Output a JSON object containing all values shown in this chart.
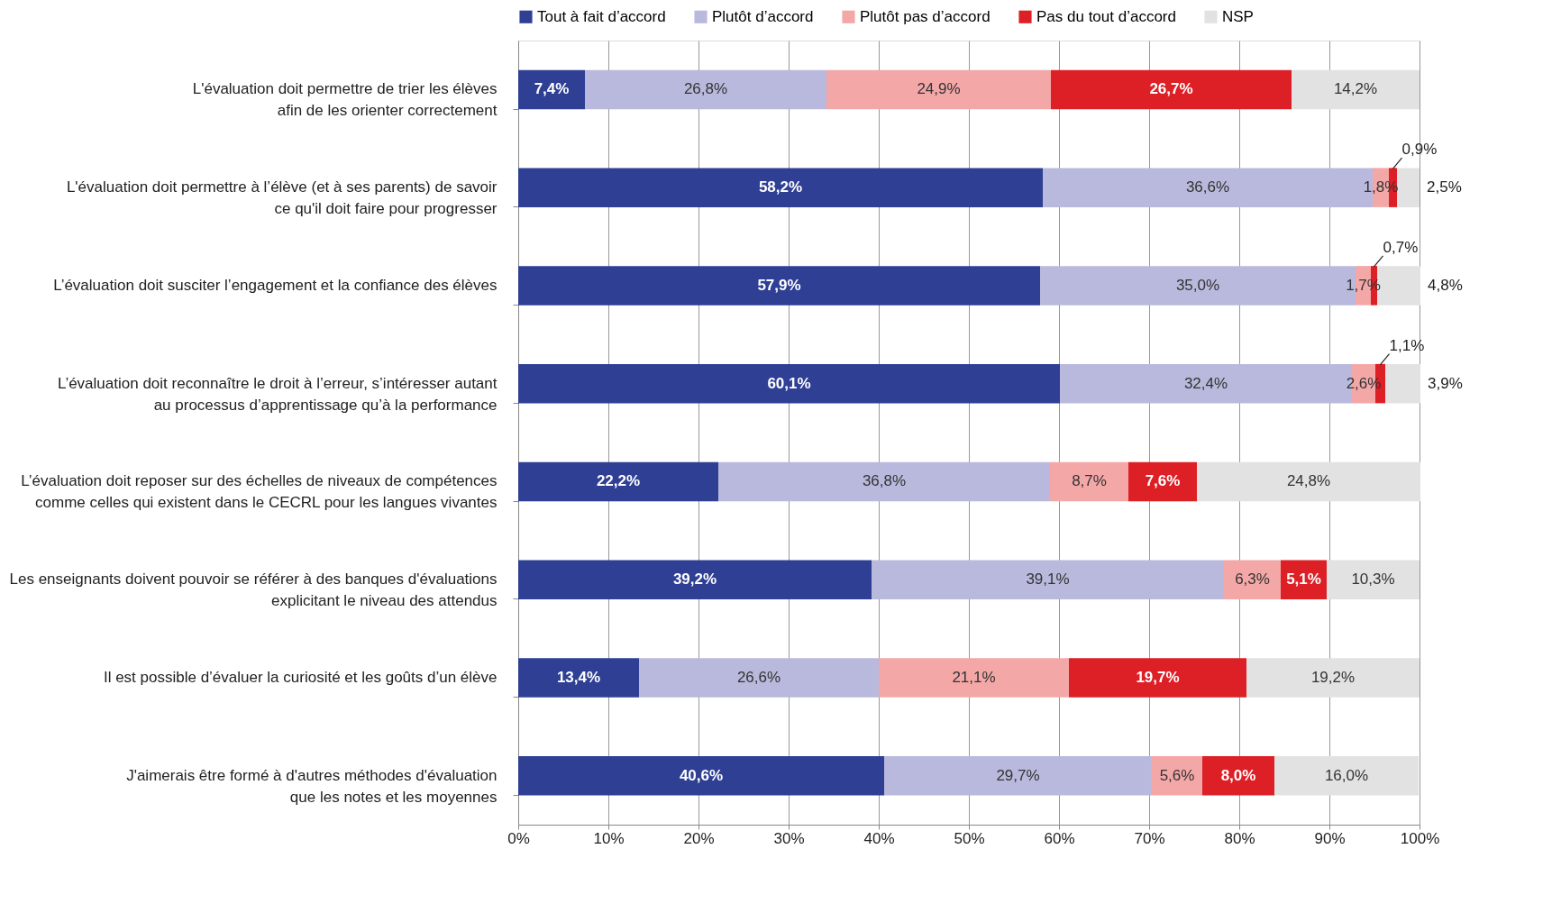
{
  "chart_data": {
    "type": "bar",
    "orientation": "horizontal",
    "stacked": true,
    "legend": "top",
    "grid": "x",
    "categories": [
      "L'évaluation doit permettre de trier les élèves\nafin de les orienter correctement",
      "L'évaluation doit permettre à l’élève (et à ses parents) de savoir\nce qu'il doit faire pour progresser",
      "L’évaluation doit susciter l’engagement et la confiance des élèves",
      "L’évaluation doit reconnaître le droit à l’erreur, s’intéresser autant\nau processus d’apprentissage qu’à la performance",
      "L’évaluation doit reposer sur des échelles de niveaux de compétences\ncomme celles qui existent dans le CECRL pour les langues vivantes",
      "Les enseignants doivent pouvoir se référer à des banques d'évaluations\nexplicitant le niveau des attendus",
      "Il est possible d’évaluer la curiosité et les goûts d’un élève",
      "J'aimerais être formé à d'autres méthodes d'évaluation\nque les notes et les moyennes"
    ],
    "series": [
      {
        "name": "Tout à fait d’accord",
        "color": "#2e3f94",
        "values": [
          7.4,
          58.2,
          57.9,
          60.1,
          22.2,
          39.2,
          13.4,
          40.6
        ],
        "value_labels": [
          "7,4%",
          "58,2%",
          "57,9%",
          "60,1%",
          "22,2%",
          "39,2%",
          "13,4%",
          "40,6%"
        ]
      },
      {
        "name": "Plutôt d’accord",
        "color": "#b9b9dd",
        "values": [
          26.8,
          36.6,
          35.0,
          32.4,
          36.8,
          39.1,
          26.6,
          29.7
        ],
        "value_labels": [
          "26,8%",
          "36,6%",
          "35,0%",
          "32,4%",
          "36,8%",
          "39,1%",
          "26,6%",
          "29,7%"
        ]
      },
      {
        "name": "Plutôt pas d’accord",
        "color": "#f4a7a7",
        "values": [
          24.9,
          1.8,
          1.7,
          2.6,
          8.7,
          6.3,
          21.1,
          5.6
        ],
        "value_labels": [
          "24,9%",
          "1,8%",
          "1,7%",
          "2,6%",
          "8,7%",
          "6,3%",
          "21,1%",
          "5,6%"
        ]
      },
      {
        "name": "Pas du tout d’accord",
        "color": "#dd1f26",
        "values": [
          26.7,
          0.9,
          0.7,
          1.1,
          7.6,
          5.1,
          19.7,
          8.0
        ],
        "value_labels": [
          "26,7%",
          "0,9%",
          "0,7%",
          "1,1%",
          "7,6%",
          "5,1%",
          "19,7%",
          "8,0%"
        ]
      },
      {
        "name": "NSP",
        "color": "#e2e2e2",
        "values": [
          14.2,
          2.5,
          4.8,
          3.9,
          24.8,
          10.3,
          19.2,
          16.0
        ],
        "value_labels": [
          "14,2%",
          "2,5%",
          "4,8%",
          "3,9%",
          "24,8%",
          "10,3%",
          "19,2%",
          "16,0%"
        ]
      }
    ],
    "xlim": [
      0,
      100
    ],
    "xticks": [
      {
        "value": 0,
        "label": "0%"
      },
      {
        "value": 10,
        "label": "10%"
      },
      {
        "value": 20,
        "label": "20%"
      },
      {
        "value": 30,
        "label": "30%"
      },
      {
        "value": 40,
        "label": "40%"
      },
      {
        "value": 50,
        "label": "50%"
      },
      {
        "value": 60,
        "label": "60%"
      },
      {
        "value": 70,
        "label": "70%"
      },
      {
        "value": 80,
        "label": "80%"
      },
      {
        "value": 90,
        "label": "90%"
      },
      {
        "value": 100,
        "label": "100%"
      }
    ]
  }
}
